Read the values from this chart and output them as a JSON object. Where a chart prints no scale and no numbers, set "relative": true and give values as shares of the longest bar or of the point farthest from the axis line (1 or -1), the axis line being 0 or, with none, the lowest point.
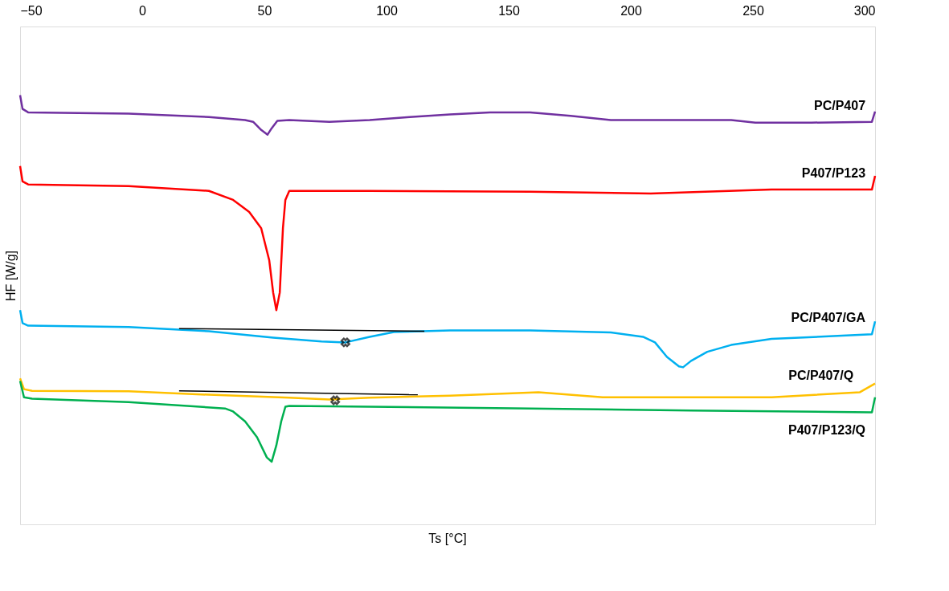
{
  "chart_data": {
    "type": "line",
    "relative": true,
    "xlabel": "Ts [°C]",
    "ylabel": "HF [W/g]",
    "xlim": [
      -50,
      300
    ],
    "xticks": [
      -50,
      0,
      50,
      100,
      150,
      200,
      250,
      300
    ],
    "grid": false,
    "marker": "none",
    "line_style": "solid",
    "series": [
      {
        "name": "PC/P407",
        "color": "#7030a0",
        "x": [
          -50,
          -49,
          -46.7,
          -5.6,
          27.3,
          42.1,
          45.4,
          48.7,
          51.3,
          53,
          55.3,
          60.2,
          76.6,
          93.1,
          109.5,
          126,
          142.4,
          158.8,
          175.3,
          191.8,
          208.2,
          224.7,
          241.1,
          251,
          274,
          298.7,
          300
        ],
        "values": [
          1.0,
          0.968,
          0.96,
          0.957,
          0.949,
          0.942,
          0.938,
          0.919,
          0.908,
          0.923,
          0.94,
          0.942,
          0.938,
          0.942,
          0.949,
          0.955,
          0.96,
          0.96,
          0.952,
          0.942,
          0.942,
          0.942,
          0.942,
          0.936,
          0.936,
          0.938,
          0.962
        ]
      },
      {
        "name": "P407/P123",
        "color": "#ff0000",
        "x": [
          -50,
          -49,
          -46.7,
          -5.6,
          27.3,
          37.2,
          43.8,
          48.7,
          52,
          53.6,
          54.9,
          56.3,
          57.6,
          58.6,
          60.2,
          93.1,
          158.8,
          208.2,
          257.6,
          298.7,
          300
        ],
        "values": [
          0.835,
          0.799,
          0.792,
          0.788,
          0.777,
          0.756,
          0.728,
          0.69,
          0.615,
          0.54,
          0.499,
          0.54,
          0.69,
          0.756,
          0.777,
          0.777,
          0.775,
          0.771,
          0.78,
          0.78,
          0.812
        ]
      },
      {
        "name": "PC/P407/GA",
        "color": "#00b0f0",
        "x": [
          -50,
          -49,
          -46.7,
          -5.6,
          27.3,
          53.6,
          73.4,
          83.2,
          93.1,
          103,
          126,
          158.8,
          191.8,
          205,
          209.9,
          214.8,
          219.7,
          221.4,
          224.7,
          231.3,
          241.1,
          257.6,
          298.7,
          300
        ],
        "values": [
          0.499,
          0.469,
          0.463,
          0.46,
          0.45,
          0.435,
          0.426,
          0.424,
          0.437,
          0.448,
          0.452,
          0.452,
          0.447,
          0.437,
          0.424,
          0.39,
          0.368,
          0.366,
          0.381,
          0.402,
          0.418,
          0.432,
          0.443,
          0.473
        ]
      },
      {
        "name": "PC/P407/Q",
        "color": "#ffc000",
        "x": [
          -50,
          -48.4,
          -45.1,
          -5.6,
          27.3,
          60.2,
          76.6,
          93.1,
          126,
          162.2,
          188.5,
          224.7,
          257.6,
          293.8,
          300
        ],
        "values": [
          0.34,
          0.315,
          0.311,
          0.31,
          0.302,
          0.295,
          0.291,
          0.295,
          0.3,
          0.308,
          0.296,
          0.296,
          0.296,
          0.308,
          0.328
        ]
      },
      {
        "name": "P407/P123/Q",
        "color": "#00b050",
        "x": [
          -50,
          -48.4,
          -45.1,
          -5.6,
          33.9,
          37.2,
          42.1,
          47,
          51,
          53,
          54.9,
          56.9,
          58.6,
          60.2,
          93.1,
          158.8,
          224.7,
          298.7,
          300
        ],
        "values": [
          0.334,
          0.296,
          0.293,
          0.285,
          0.27,
          0.263,
          0.24,
          0.203,
          0.156,
          0.146,
          0.184,
          0.24,
          0.274,
          0.276,
          0.274,
          0.27,
          0.265,
          0.261,
          0.296
        ]
      },
      {
        "type": "line",
        "color": "#000000",
        "x": [
          15.1,
          115.5
        ],
        "values": [
          0.456,
          0.45
        ]
      },
      {
        "type": "line",
        "color": "#000000",
        "x": [
          15.1,
          112.8
        ],
        "values": [
          0.311,
          0.302
        ]
      },
      {
        "type": "scatter",
        "marker": "cross",
        "color": "#000000",
        "x": [
          83.2
        ],
        "values": [
          0.424
        ]
      },
      {
        "type": "scatter",
        "marker": "cross",
        "color": "#000000",
        "x": [
          79
        ],
        "values": [
          0.289
        ]
      }
    ]
  }
}
